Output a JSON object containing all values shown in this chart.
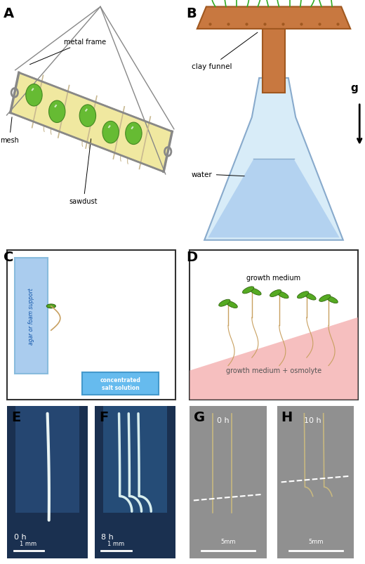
{
  "fig_width": 5.2,
  "fig_height": 8.04,
  "dpi": 100,
  "bg_color": "#ffffff",
  "panel_label_fontsize": 14,
  "panel_label_weight": "bold",
  "colors": {
    "sawdust": "#f0e8a0",
    "sawdust_border": "#c8b860",
    "metal_frame": "#888888",
    "mesh": "#c8b890",
    "green_ball": "#66bb33",
    "green_ball_dark": "#448822",
    "clay_funnel": "#c87840",
    "clay_funnel_dark": "#a05820",
    "water": "#aaccee",
    "water_dark": "#88aacc",
    "agar_support": "#88bbdd",
    "agar_support_light": "#aaccee",
    "salt_solution": "#4499cc",
    "salt_solution_light": "#66bbee",
    "osmolyte_medium": "#f5b8b8",
    "seedling_stem": "#c8a060",
    "seedling_leaf": "#55aa22"
  },
  "text": {
    "metal_frame": "metal frame",
    "mesh": "mesh",
    "sawdust": "sawdust",
    "clay_funnel": "clay funnel",
    "water": "water",
    "g_label": "g",
    "agar_support": "agar or foam support",
    "salt_solution": "concentrated\nsalt solution",
    "growth_medium": "growth medium",
    "osmolyte": "growth medium + osmolyte",
    "E_time": "0 h",
    "F_time": "8 h",
    "G_time": "0 h",
    "H_time": "10 h",
    "E_scale": "1 mm",
    "F_scale": "1 mm",
    "G_scale": "5mm",
    "H_scale": "5mm"
  }
}
